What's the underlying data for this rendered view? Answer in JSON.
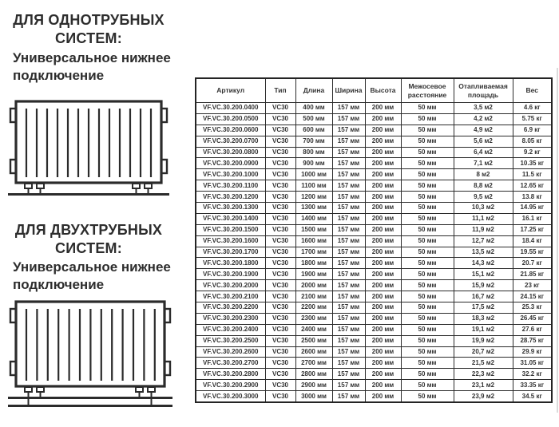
{
  "left": {
    "single_pipe": {
      "heading": "ДЛЯ ОДНОТРУБНЫХ СИСТЕМ:",
      "subtitle": "Универсальное нижнее подключение"
    },
    "two_pipe": {
      "heading": "ДЛЯ ДВУХТРУБНЫХ СИСТЕМ:",
      "subtitle": "Универсальное нижнее подключение"
    }
  },
  "table": {
    "columns": [
      "Артикул",
      "Тип",
      "Длина",
      "Ширина",
      "Высота",
      "Межосевое расстояние",
      "Отапливаемая площадь",
      "Вес"
    ],
    "rows": [
      [
        "VF.VC.30.200.0400",
        "VC30",
        "400 мм",
        "157 мм",
        "200 мм",
        "50 мм",
        "3,5 м2",
        "4.6 кг"
      ],
      [
        "VF.VC.30.200.0500",
        "VC30",
        "500 мм",
        "157 мм",
        "200 мм",
        "50 мм",
        "4,2 м2",
        "5.75 кг"
      ],
      [
        "VF.VC.30.200.0600",
        "VC30",
        "600 мм",
        "157 мм",
        "200 мм",
        "50 мм",
        "4,9 м2",
        "6.9 кг"
      ],
      [
        "VF.VC.30.200.0700",
        "VC30",
        "700 мм",
        "157 мм",
        "200 мм",
        "50 мм",
        "5,6 м2",
        "8.05 кг"
      ],
      [
        "VF.VC.30.200.0800",
        "VC30",
        "800 мм",
        "157 мм",
        "200 мм",
        "50 мм",
        "6,4 м2",
        "9.2 кг"
      ],
      [
        "VF.VC.30.200.0900",
        "VC30",
        "900 мм",
        "157 мм",
        "200 мм",
        "50 мм",
        "7,1 м2",
        "10.35 кг"
      ],
      [
        "VF.VC.30.200.1000",
        "VC30",
        "1000 мм",
        "157 мм",
        "200 мм",
        "50 мм",
        "8 м2",
        "11.5 кг"
      ],
      [
        "VF.VC.30.200.1100",
        "VC30",
        "1100 мм",
        "157 мм",
        "200 мм",
        "50 мм",
        "8,8 м2",
        "12.65 кг"
      ],
      [
        "VF.VC.30.200.1200",
        "VC30",
        "1200 мм",
        "157 мм",
        "200 мм",
        "50 мм",
        "9,5 м2",
        "13.8 кг"
      ],
      [
        "VF.VC.30.200.1300",
        "VC30",
        "1300 мм",
        "157 мм",
        "200 мм",
        "50 мм",
        "10,3 м2",
        "14.95 кг"
      ],
      [
        "VF.VC.30.200.1400",
        "VC30",
        "1400 мм",
        "157 мм",
        "200 мм",
        "50 мм",
        "11,1 м2",
        "16.1 кг"
      ],
      [
        "VF.VC.30.200.1500",
        "VC30",
        "1500 мм",
        "157 мм",
        "200 мм",
        "50 мм",
        "11,9 м2",
        "17.25 кг"
      ],
      [
        "VF.VC.30.200.1600",
        "VC30",
        "1600 мм",
        "157 мм",
        "200 мм",
        "50 мм",
        "12,7 м2",
        "18.4 кг"
      ],
      [
        "VF.VC.30.200.1700",
        "VC30",
        "1700 мм",
        "157 мм",
        "200 мм",
        "50 мм",
        "13,5 м2",
        "19.55 кг"
      ],
      [
        "VF.VC.30.200.1800",
        "VC30",
        "1800 мм",
        "157 мм",
        "200 мм",
        "50 мм",
        "14,3 м2",
        "20.7 кг"
      ],
      [
        "VF.VC.30.200.1900",
        "VC30",
        "1900 мм",
        "157 мм",
        "200 мм",
        "50 мм",
        "15,1 м2",
        "21.85 кг"
      ],
      [
        "VF.VC.30.200.2000",
        "VC30",
        "2000 мм",
        "157 мм",
        "200 мм",
        "50 мм",
        "15,9 м2",
        "23 кг"
      ],
      [
        "VF.VC.30.200.2100",
        "VC30",
        "2100 мм",
        "157 мм",
        "200 мм",
        "50 мм",
        "16,7 м2",
        "24.15 кг"
      ],
      [
        "VF.VC.30.200.2200",
        "VC30",
        "2200 мм",
        "157 мм",
        "200 мм",
        "50 мм",
        "17,5 м2",
        "25.3 кг"
      ],
      [
        "VF.VC.30.200.2300",
        "VC30",
        "2300 мм",
        "157 мм",
        "200 мм",
        "50 мм",
        "18,3 м2",
        "26.45 кг"
      ],
      [
        "VF.VC.30.200.2400",
        "VC30",
        "2400 мм",
        "157 мм",
        "200 мм",
        "50 мм",
        "19,1 м2",
        "27.6 кг"
      ],
      [
        "VF.VC.30.200.2500",
        "VC30",
        "2500 мм",
        "157 мм",
        "200 мм",
        "50 мм",
        "19,9 м2",
        "28.75 кг"
      ],
      [
        "VF.VC.30.200.2600",
        "VC30",
        "2600 мм",
        "157 мм",
        "200 мм",
        "50 мм",
        "20,7 м2",
        "29.9 кг"
      ],
      [
        "VF.VC.30.200.2700",
        "VC30",
        "2700 мм",
        "157 мм",
        "200 мм",
        "50 мм",
        "21,5 м2",
        "31.05 кг"
      ],
      [
        "VF.VC.30.200.2800",
        "VC30",
        "2800 мм",
        "157 мм",
        "200 мм",
        "50 мм",
        "22,3 м2",
        "32.2 кг"
      ],
      [
        "VF.VC.30.200.2900",
        "VC30",
        "2900 мм",
        "157 мм",
        "200 мм",
        "50 мм",
        "23,1 м2",
        "33.35 кг"
      ],
      [
        "VF.VC.30.200.3000",
        "VC30",
        "3000 мм",
        "157 мм",
        "200 мм",
        "50 мм",
        "23,9 м2",
        "34.5 кг"
      ]
    ]
  }
}
